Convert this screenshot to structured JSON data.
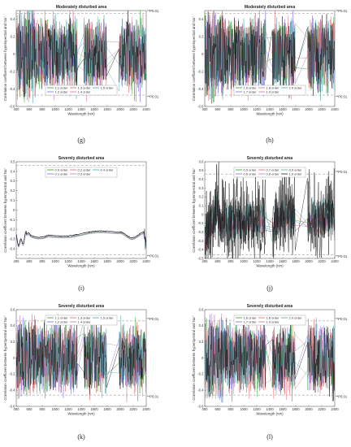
{
  "figure": {
    "ylabel": "Correlation coefficent between hyperspectral and Na⁺",
    "xlabel": "Wavelength (nm)",
    "sig_label": "**P0.01"
  },
  "chart_data": [
    {
      "type": "line",
      "letter": "(g)",
      "title": "Moderately disturbed area",
      "xlim": [
        400,
        2400
      ],
      "ylim": [
        -0.6,
        0.5
      ],
      "xticks": [
        400,
        600,
        800,
        1000,
        1200,
        1400,
        1600,
        1800,
        2000,
        2200,
        2400
      ],
      "yticks": [
        -0.6,
        -0.4,
        -0.2,
        0,
        0.2,
        0.4
      ],
      "sig": [
        0.47,
        -0.47
      ],
      "sig_labels": [
        "**P0.01",
        "**P0.01"
      ],
      "style": "noisy",
      "legend_pos": "bottom-center",
      "series": [
        {
          "name": "1.1 order",
          "color": "#2ca02c"
        },
        {
          "name": "1.2 order",
          "color": "#7b68ee"
        },
        {
          "name": "1.3 order",
          "color": "#e06666"
        },
        {
          "name": "1.4 order",
          "color": "#c27ba0"
        },
        {
          "name": "1.5 order",
          "color": "#4aa8a8"
        }
      ]
    },
    {
      "type": "line",
      "letter": "(h)",
      "title": "Moderately disturbed area",
      "xlim": [
        400,
        2400
      ],
      "ylim": [
        -0.6,
        0.5
      ],
      "xticks": [
        400,
        600,
        800,
        1000,
        1200,
        1400,
        1600,
        1800,
        2000,
        2200,
        2400
      ],
      "yticks": [
        -0.6,
        -0.4,
        -0.2,
        0,
        0.2,
        0.4
      ],
      "sig": [
        0.47,
        -0.47
      ],
      "sig_labels": [
        "**P0.01",
        "**P0.01"
      ],
      "style": "noisy",
      "legend_pos": "bottom-center",
      "series": [
        {
          "name": "1.6 order",
          "color": "#2ca02c"
        },
        {
          "name": "1.7 order",
          "color": "#7b68ee"
        },
        {
          "name": "1.8 order",
          "color": "#e06666"
        },
        {
          "name": "1.9 order",
          "color": "#c27ba0"
        },
        {
          "name": "2.0 order",
          "color": "#4aa8a8"
        }
      ]
    },
    {
      "type": "line",
      "letter": "(i)",
      "title": "Severely disturbed area",
      "xlim": [
        400,
        2400
      ],
      "ylim": [
        -0.5,
        0.5
      ],
      "xticks": [
        400,
        600,
        800,
        1000,
        1200,
        1400,
        1600,
        1800,
        2000,
        2200,
        2400
      ],
      "yticks": [
        -0.4,
        -0.3,
        -0.2,
        -0.1,
        0,
        0.1,
        0.2,
        0.3,
        0.4,
        0.5
      ],
      "sig": [
        0.46,
        -0.46
      ],
      "sig_labels": [
        "",
        "**P0.01"
      ],
      "style": "smooth",
      "legend_pos": "top-center",
      "series": [
        {
          "name": "0.0 order",
          "color": "#2ca02c"
        },
        {
          "name": "0.1 order",
          "color": "#7b68ee"
        },
        {
          "name": "0.2 order",
          "color": "#e06666"
        },
        {
          "name": "0.3 order",
          "color": "#c27ba0"
        },
        {
          "name": "0.4 order",
          "color": "#4aa8a8"
        }
      ]
    },
    {
      "type": "line",
      "letter": "(j)",
      "title": "Severely disturbed area",
      "xlim": [
        400,
        2400
      ],
      "ylim": [
        -0.5,
        0.6
      ],
      "xticks": [
        400,
        600,
        800,
        1000,
        1200,
        1400,
        1600,
        1800,
        2000,
        2200,
        2400
      ],
      "yticks": [
        -0.5,
        -0.4,
        -0.3,
        -0.2,
        -0.1,
        0,
        0.1,
        0.2,
        0.3,
        0.4,
        0.5,
        0.6
      ],
      "sig": [
        0.46,
        -0.46
      ],
      "sig_labels": [
        "**P0.01",
        "**P0.01"
      ],
      "style": "rising",
      "legend_pos": "top-center",
      "series": [
        {
          "name": "0.5 order",
          "color": "#2ca02c"
        },
        {
          "name": "0.6 order",
          "color": "#7b68ee"
        },
        {
          "name": "0.7 order",
          "color": "#e06666"
        },
        {
          "name": "0.8 order",
          "color": "#c27ba0"
        },
        {
          "name": "0.9 order",
          "color": "#4aa8a8"
        },
        {
          "name": "1.0 order",
          "color": "#222222"
        }
      ]
    },
    {
      "type": "line",
      "letter": "(k)",
      "title": "Severely disturbed area",
      "xlim": [
        400,
        2400
      ],
      "ylim": [
        -0.6,
        0.6
      ],
      "xticks": [
        400,
        600,
        800,
        1000,
        1200,
        1400,
        1600,
        1800,
        2000,
        2200,
        2400
      ],
      "yticks": [
        -0.6,
        -0.4,
        -0.2,
        0,
        0.2,
        0.4,
        0.6
      ],
      "sig": [
        0.46,
        -0.46
      ],
      "sig_labels": [
        "**P0.01",
        "**P0.01"
      ],
      "style": "noisy",
      "legend_pos": "top-center",
      "series": [
        {
          "name": "1.1 order",
          "color": "#2ca02c"
        },
        {
          "name": "1.2 order",
          "color": "#7b68ee"
        },
        {
          "name": "1.3 order",
          "color": "#e06666"
        },
        {
          "name": "1.4 order",
          "color": "#c27ba0"
        },
        {
          "name": "1.5 order",
          "color": "#4aa8a8"
        }
      ]
    },
    {
      "type": "line",
      "letter": "(l)",
      "title": "Severely disturbed area",
      "xlim": [
        400,
        2400
      ],
      "ylim": [
        -0.6,
        0.6
      ],
      "xticks": [
        400,
        600,
        800,
        1000,
        1200,
        1400,
        1600,
        1800,
        2000,
        2200,
        2400
      ],
      "yticks": [
        -0.6,
        -0.4,
        -0.2,
        0,
        0.2,
        0.4,
        0.6
      ],
      "sig": [
        0.46,
        -0.46
      ],
      "sig_labels": [
        "**P0.01",
        "**P0.01"
      ],
      "style": "noisy",
      "legend_pos": "top-center",
      "series": [
        {
          "name": "1.6 order",
          "color": "#2ca02c"
        },
        {
          "name": "1.7 order",
          "color": "#7b68ee"
        },
        {
          "name": "1.8 order",
          "color": "#e06666"
        },
        {
          "name": "1.9 order",
          "color": "#c27ba0"
        },
        {
          "name": "2.0 order",
          "color": "#4aa8a8"
        }
      ]
    }
  ]
}
